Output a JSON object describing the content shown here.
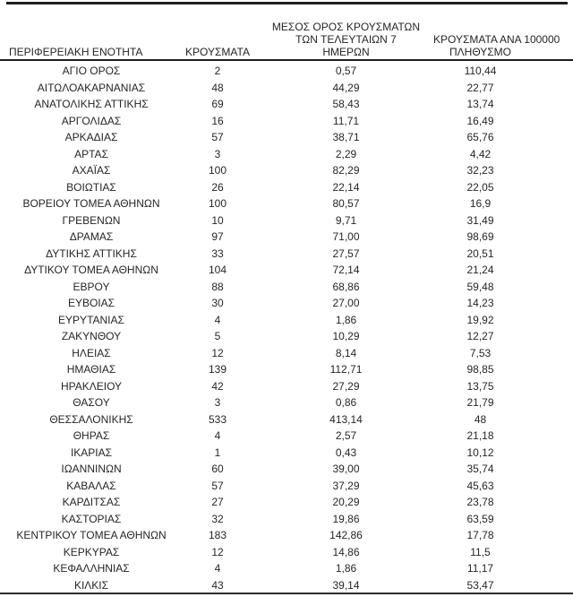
{
  "table": {
    "header": {
      "col1": "ΠΕΡΙΦΕΡΕΙΑΚΗ ΕΝΟΤΗΤΑ",
      "col2": "ΚΡΟΥΣΜΑΤΑ",
      "col3_line1": "ΜΕΣΟΣ ΟΡΟΣ ΚΡΟΥΣΜΑΤΩΝ",
      "col3_line2": "ΤΩΝ ΤΕΛΕΥΤΑΙΩΝ 7",
      "col3_line3": "ΗΜΕΡΩΝ",
      "col4_line1": "ΚΡΟΥΣΜΑΤΑ ΑΝΑ 100000",
      "col4_line2": "ΠΛΗΘΥΣΜΟ"
    },
    "rows": [
      {
        "region": "ΑΓΙΟ ΟΡΟΣ",
        "cases": "2",
        "avg7day": "0,57",
        "per100k": "110,44"
      },
      {
        "region": "ΑΙΤΩΛΟΑΚΑΡΝΑΝΙΑΣ",
        "cases": "48",
        "avg7day": "44,29",
        "per100k": "22,77"
      },
      {
        "region": "ΑΝΑΤΟΛΙΚΗΣ ΑΤΤΙΚΗΣ",
        "cases": "69",
        "avg7day": "58,43",
        "per100k": "13,74"
      },
      {
        "region": "ΑΡΓΟΛΙΔΑΣ",
        "cases": "16",
        "avg7day": "11,71",
        "per100k": "16,49"
      },
      {
        "region": "ΑΡΚΑΔΙΑΣ",
        "cases": "57",
        "avg7day": "38,71",
        "per100k": "65,76"
      },
      {
        "region": "ΑΡΤΑΣ",
        "cases": "3",
        "avg7day": "2,29",
        "per100k": "4,42"
      },
      {
        "region": "ΑΧΑΪΑΣ",
        "cases": "100",
        "avg7day": "82,29",
        "per100k": "32,23"
      },
      {
        "region": "ΒΟΙΩΤΙΑΣ",
        "cases": "26",
        "avg7day": "22,14",
        "per100k": "22,05"
      },
      {
        "region": "ΒΟΡΕΙΟΥ ΤΟΜΕΑ ΑΘΗΝΩΝ",
        "cases": "100",
        "avg7day": "80,57",
        "per100k": "16,9"
      },
      {
        "region": "ΓΡΕΒΕΝΩΝ",
        "cases": "10",
        "avg7day": "9,71",
        "per100k": "31,49"
      },
      {
        "region": "ΔΡΑΜΑΣ",
        "cases": "97",
        "avg7day": "71,00",
        "per100k": "98,69"
      },
      {
        "region": "ΔΥΤΙΚΗΣ ΑΤΤΙΚΗΣ",
        "cases": "33",
        "avg7day": "27,57",
        "per100k": "20,51"
      },
      {
        "region": "ΔΥΤΙΚΟΥ ΤΟΜΕΑ ΑΘΗΝΩΝ",
        "cases": "104",
        "avg7day": "72,14",
        "per100k": "21,24"
      },
      {
        "region": "ΕΒΡΟΥ",
        "cases": "88",
        "avg7day": "68,86",
        "per100k": "59,48"
      },
      {
        "region": "ΕΥΒΟΙΑΣ",
        "cases": "30",
        "avg7day": "27,00",
        "per100k": "14,23"
      },
      {
        "region": "ΕΥΡΥΤΑΝΙΑΣ",
        "cases": "4",
        "avg7day": "1,86",
        "per100k": "19,92"
      },
      {
        "region": "ΖΑΚΥΝΘΟΥ",
        "cases": "5",
        "avg7day": "10,29",
        "per100k": "12,27"
      },
      {
        "region": "ΗΛΕΙΑΣ",
        "cases": "12",
        "avg7day": "8,14",
        "per100k": "7,53"
      },
      {
        "region": "ΗΜΑΘΙΑΣ",
        "cases": "139",
        "avg7day": "112,71",
        "per100k": "98,85"
      },
      {
        "region": "ΗΡΑΚΛΕΙΟΥ",
        "cases": "42",
        "avg7day": "27,29",
        "per100k": "13,75"
      },
      {
        "region": "ΘΑΣΟΥ",
        "cases": "3",
        "avg7day": "0,86",
        "per100k": "21,79"
      },
      {
        "region": "ΘΕΣΣΑΛΟΝΙΚΗΣ",
        "cases": "533",
        "avg7day": "413,14",
        "per100k": "48"
      },
      {
        "region": "ΘΗΡΑΣ",
        "cases": "4",
        "avg7day": "2,57",
        "per100k": "21,18"
      },
      {
        "region": "ΙΚΑΡΙΑΣ",
        "cases": "1",
        "avg7day": "0,43",
        "per100k": "10,12"
      },
      {
        "region": "ΙΩΑΝΝΙΝΩΝ",
        "cases": "60",
        "avg7day": "39,00",
        "per100k": "35,74"
      },
      {
        "region": "ΚΑΒΑΛΑΣ",
        "cases": "57",
        "avg7day": "37,29",
        "per100k": "45,63"
      },
      {
        "region": "ΚΑΡΔΙΤΣΑΣ",
        "cases": "27",
        "avg7day": "20,29",
        "per100k": "23,78"
      },
      {
        "region": "ΚΑΣΤΟΡΙΑΣ",
        "cases": "32",
        "avg7day": "19,86",
        "per100k": "63,59"
      },
      {
        "region": "ΚΕΝΤΡΙΚΟΥ ΤΟΜΕΑ ΑΘΗΝΩΝ",
        "cases": "183",
        "avg7day": "142,86",
        "per100k": "17,78"
      },
      {
        "region": "ΚΕΡΚΥΡΑΣ",
        "cases": "12",
        "avg7day": "14,86",
        "per100k": "11,5"
      },
      {
        "region": "ΚΕΦΑΛΛΗΝΙΑΣ",
        "cases": "4",
        "avg7day": "1,86",
        "per100k": "11,17"
      },
      {
        "region": "ΚΙΛΚΙΣ",
        "cases": "43",
        "avg7day": "39,14",
        "per100k": "53,47"
      }
    ]
  },
  "colors": {
    "text": "#262626",
    "rule": "#1f1f1f",
    "background": "#ffffff"
  }
}
